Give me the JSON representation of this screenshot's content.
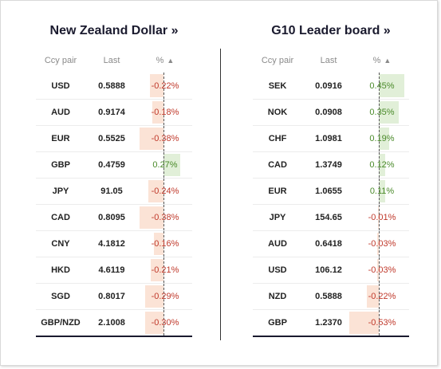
{
  "left": {
    "title": "New Zealand Dollar »",
    "headers": {
      "pair": "Ccy pair",
      "last": "Last",
      "pct": "%"
    },
    "rows": [
      {
        "pair": "USD",
        "last": "0.5888",
        "pct": "-0.22%",
        "value": -0.22
      },
      {
        "pair": "AUD",
        "last": "0.9174",
        "pct": "-0.18%",
        "value": -0.18
      },
      {
        "pair": "EUR",
        "last": "0.5525",
        "pct": "-0.38%",
        "value": -0.38
      },
      {
        "pair": "GBP",
        "last": "0.4759",
        "pct": "0.27%",
        "value": 0.27
      },
      {
        "pair": "JPY",
        "last": "91.05",
        "pct": "-0.24%",
        "value": -0.24
      },
      {
        "pair": "CAD",
        "last": "0.8095",
        "pct": "-0.38%",
        "value": -0.38
      },
      {
        "pair": "CNY",
        "last": "4.1812",
        "pct": "-0.16%",
        "value": -0.16
      },
      {
        "pair": "HKD",
        "last": "4.6119",
        "pct": "-0.21%",
        "value": -0.21
      },
      {
        "pair": "SGD",
        "last": "0.8017",
        "pct": "-0.29%",
        "value": -0.29
      },
      {
        "pair": "GBP/NZD",
        "last": "2.1008",
        "pct": "-0.30%",
        "value": -0.3
      }
    ]
  },
  "right": {
    "title": "G10 Leader board »",
    "headers": {
      "pair": "Ccy pair",
      "last": "Last",
      "pct": "%"
    },
    "rows": [
      {
        "pair": "SEK",
        "last": "0.0916",
        "pct": "0.45%",
        "value": 0.45
      },
      {
        "pair": "NOK",
        "last": "0.0908",
        "pct": "0.35%",
        "value": 0.35
      },
      {
        "pair": "CHF",
        "last": "1.0981",
        "pct": "0.19%",
        "value": 0.19
      },
      {
        "pair": "CAD",
        "last": "1.3749",
        "pct": "0.12%",
        "value": 0.12
      },
      {
        "pair": "EUR",
        "last": "1.0655",
        "pct": "0.11%",
        "value": 0.11
      },
      {
        "pair": "JPY",
        "last": "154.65",
        "pct": "-0.01%",
        "value": -0.01
      },
      {
        "pair": "AUD",
        "last": "0.6418",
        "pct": "-0.03%",
        "value": -0.03
      },
      {
        "pair": "USD",
        "last": "106.12",
        "pct": "-0.03%",
        "value": -0.03
      },
      {
        "pair": "NZD",
        "last": "0.5888",
        "pct": "-0.22%",
        "value": -0.22
      },
      {
        "pair": "GBP",
        "last": "1.2370",
        "pct": "-0.53%",
        "value": -0.53
      }
    ]
  },
  "sort_icon": "triangle-up-icon",
  "colors": {
    "negative_text": "#c0392b",
    "positive_text": "#4a8a2a",
    "negative_bar": "#fbe3d6",
    "positive_bar": "#e1efd8"
  }
}
